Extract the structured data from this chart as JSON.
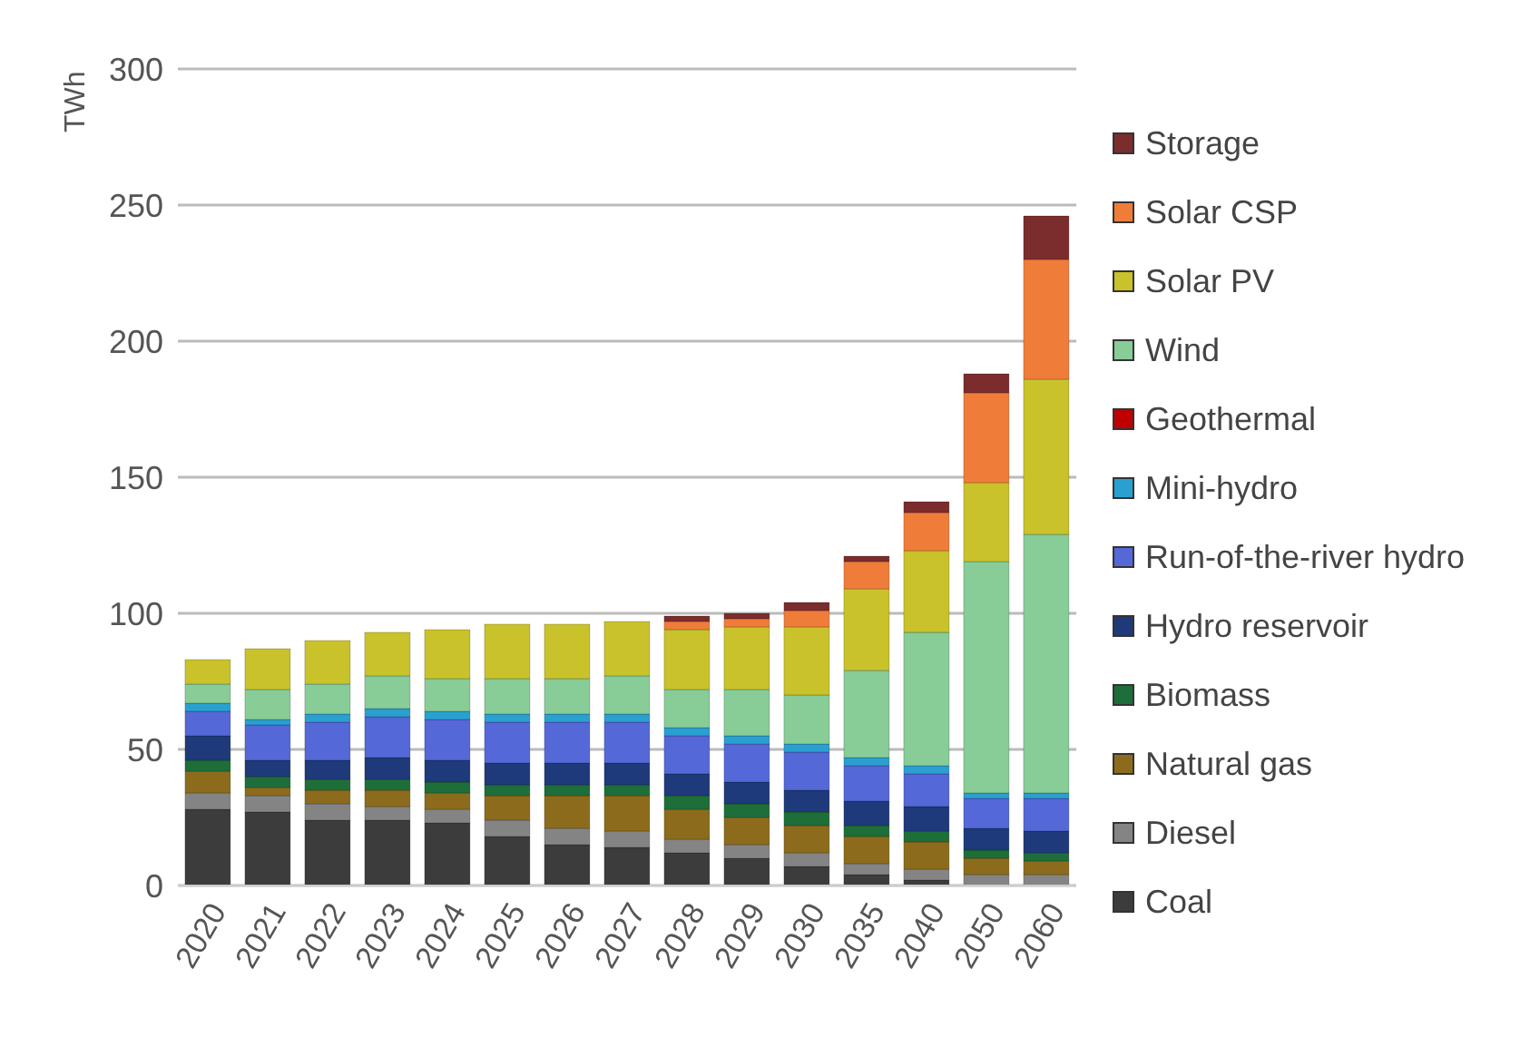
{
  "chart_data": {
    "type": "bar",
    "stacked": true,
    "ylabel": "TWh",
    "categories": [
      "2020",
      "2021",
      "2022",
      "2023",
      "2024",
      "2025",
      "2026",
      "2027",
      "2028",
      "2029",
      "2030",
      "2035",
      "2040",
      "2050",
      "2060"
    ],
    "series": [
      {
        "name": "Coal",
        "color": "#3c3c3c",
        "values": [
          28,
          27,
          24,
          24,
          23,
          18,
          15,
          14,
          12,
          10,
          7,
          4,
          2,
          null,
          null
        ]
      },
      {
        "name": "Diesel",
        "color": "#848484",
        "values": [
          6,
          6,
          6,
          5,
          5,
          6,
          6,
          6,
          5,
          5,
          5,
          4,
          4,
          4,
          4
        ]
      },
      {
        "name": "Natural gas",
        "color": "#8c6c1c",
        "values": [
          8,
          3,
          5,
          6,
          6,
          9,
          12,
          13,
          11,
          10,
          10,
          10,
          10,
          6,
          5
        ]
      },
      {
        "name": "Biomass",
        "color": "#1e6e3a",
        "values": [
          4,
          4,
          4,
          4,
          4,
          4,
          4,
          4,
          5,
          5,
          5,
          4,
          4,
          3,
          3
        ]
      },
      {
        "name": "Hydro reservoir",
        "color": "#1f3a7a",
        "values": [
          9,
          6,
          7,
          8,
          8,
          8,
          8,
          8,
          8,
          8,
          8,
          9,
          9,
          8,
          8
        ]
      },
      {
        "name": "Run-of-the-river hydro",
        "color": "#5468d8",
        "values": [
          9,
          13,
          14,
          15,
          15,
          15,
          15,
          15,
          14,
          14,
          14,
          13,
          12,
          11,
          12
        ]
      },
      {
        "name": "Mini-hydro",
        "color": "#2aa0d0",
        "values": [
          3,
          2,
          3,
          3,
          3,
          3,
          3,
          3,
          3,
          3,
          3,
          3,
          3,
          2,
          2
        ]
      },
      {
        "name": "Geothermal",
        "color": "#c00000",
        "values": [
          0,
          0,
          0,
          0,
          0,
          0,
          0,
          0,
          0,
          0,
          0,
          0,
          0,
          0,
          0
        ]
      },
      {
        "name": "Wind",
        "color": "#88cc98",
        "values": [
          7,
          11,
          11,
          12,
          12,
          13,
          13,
          14,
          14,
          17,
          18,
          32,
          49,
          85,
          95
        ]
      },
      {
        "name": "Solar PV",
        "color": "#c9c22a",
        "values": [
          9,
          15,
          16,
          16,
          18,
          20,
          20,
          20,
          22,
          23,
          25,
          30,
          30,
          29,
          57
        ]
      },
      {
        "name": "Solar CSP",
        "color": "#f07c3a",
        "values": [
          0,
          0,
          0,
          0,
          0,
          0,
          0,
          0,
          3,
          3,
          6,
          10,
          14,
          33,
          44
        ]
      },
      {
        "name": "Storage",
        "color": "#7b2c2c",
        "values": [
          0,
          0,
          0,
          0,
          0,
          0,
          0,
          0,
          2,
          2,
          3,
          2,
          4,
          7,
          16
        ]
      }
    ],
    "ylim": [
      0,
      300
    ],
    "yticks": [
      0,
      50,
      100,
      150,
      200,
      250,
      300
    ],
    "grid": "y",
    "legend": "right"
  }
}
